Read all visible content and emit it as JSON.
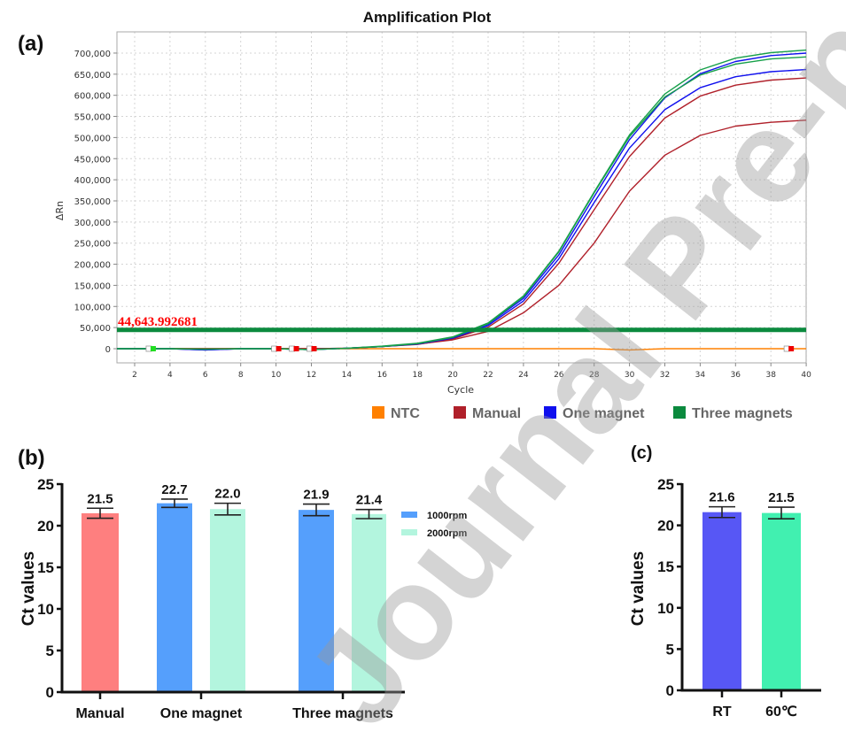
{
  "watermark": "Journal Pre-proof",
  "chart_data": [
    {
      "panel": "(a)",
      "type": "line",
      "title": "Amplification Plot",
      "xlabel": "Cycle",
      "ylabel": "ΔRn",
      "xlim": [
        1,
        40
      ],
      "ylim": [
        -35000,
        735000
      ],
      "xticks": [
        2,
        4,
        6,
        8,
        10,
        12,
        14,
        16,
        18,
        20,
        22,
        24,
        26,
        28,
        30,
        32,
        34,
        36,
        38,
        40
      ],
      "yticks": [
        0,
        50000,
        100000,
        150000,
        200000,
        250000,
        300000,
        350000,
        400000,
        450000,
        500000,
        550000,
        600000,
        650000,
        700000
      ],
      "ytick_labels": [
        "0",
        "50,000",
        "100,000",
        "150,000",
        "200,000",
        "250,000",
        "300,000",
        "350,000",
        "400,000",
        "450,000",
        "500,000",
        "550,000",
        "600,000",
        "650,000",
        "700,000"
      ],
      "grid": true,
      "threshold": {
        "value": 44643.992681,
        "label": "44,643.992681",
        "color": "#0b8a3e"
      },
      "x": [
        1,
        2,
        4,
        6,
        8,
        10,
        12,
        14,
        16,
        18,
        20,
        22,
        24,
        26,
        28,
        30,
        32,
        34,
        36,
        38,
        40
      ],
      "series": [
        {
          "name": "Three magnets",
          "color": "#17a04a",
          "values": [
            0,
            0,
            0,
            -1000,
            0,
            0,
            -2000,
            1000,
            6000,
            13000,
            28000,
            61000,
            125000,
            231000,
            371000,
            506000,
            603000,
            660000,
            688000,
            701000,
            707000
          ]
        },
        {
          "name": "Three magnets",
          "color": "#17a04a",
          "values": [
            0,
            0,
            0,
            -1000,
            0,
            0,
            -2000,
            1000,
            5000,
            12000,
            27000,
            59000,
            123000,
            229000,
            369000,
            502000,
            596000,
            648000,
            674000,
            686000,
            691000
          ]
        },
        {
          "name": "One magnet",
          "color": "#1010ee",
          "values": [
            0,
            0,
            0,
            -3000,
            0,
            0,
            -2000,
            1000,
            5000,
            12000,
            27000,
            58000,
            119000,
            222000,
            360000,
            495000,
            594000,
            651000,
            680000,
            694000,
            700000
          ]
        },
        {
          "name": "One magnet",
          "color": "#1010ee",
          "values": [
            0,
            0,
            0,
            -3000,
            0,
            0,
            -2000,
            1000,
            5000,
            11000,
            25000,
            55000,
            113000,
            213000,
            346000,
            475000,
            566000,
            618000,
            644000,
            656000,
            661000
          ]
        },
        {
          "name": "Manual",
          "color": "#b0202a",
          "values": [
            0,
            0,
            0,
            0,
            0,
            0,
            0,
            1000,
            5000,
            10000,
            23000,
            51000,
            106000,
            202000,
            329000,
            455000,
            546000,
            598000,
            624000,
            636000,
            641000
          ]
        },
        {
          "name": "Manual",
          "color": "#b0202a",
          "values": [
            0,
            0,
            0,
            0,
            0,
            0,
            0,
            1000,
            5000,
            11000,
            21000,
            41000,
            85000,
            150000,
            250000,
            373000,
            458000,
            505000,
            527000,
            536000,
            541000
          ]
        },
        {
          "name": "NTC",
          "color": "#ff8000",
          "values": [
            0,
            0,
            0,
            0,
            0,
            0,
            0,
            0,
            0,
            0,
            0,
            0,
            0,
            0,
            0,
            -3000,
            0,
            0,
            0,
            0,
            0
          ]
        }
      ],
      "markers": [
        {
          "cycle": 3,
          "color": "#22dd22"
        },
        {
          "cycle": 10.1,
          "color": "#ee0000"
        },
        {
          "cycle": 11.1,
          "color": "#ee0000"
        },
        {
          "cycle": 12.1,
          "color": "#ee0000"
        },
        {
          "cycle": 39.1,
          "color": "#ee0000"
        }
      ],
      "legend": [
        {
          "label": "NTC",
          "color": "#ff8000"
        },
        {
          "label": "Manual",
          "color": "#b0202a"
        },
        {
          "label": "One magnet",
          "color": "#1010ee"
        },
        {
          "label": "Three magnets",
          "color": "#0b8a3e"
        }
      ],
      "legend_position": "bottom-right"
    },
    {
      "panel": "(b)",
      "type": "bar",
      "ylabel": "Ct values",
      "ylim": [
        0,
        25
      ],
      "yticks": [
        0,
        5,
        10,
        15,
        20,
        25
      ],
      "categories": [
        "Manual",
        "One magnet",
        "Three magnets"
      ],
      "bars": [
        {
          "category": "Manual",
          "series": "Manual",
          "value": 21.5,
          "error": 0.6,
          "label": "21.5",
          "color": "#fe7f7f"
        },
        {
          "category": "One magnet",
          "series": "1000rpm",
          "value": 22.7,
          "error": 0.5,
          "label": "22.7",
          "color": "#559ffc"
        },
        {
          "category": "One magnet",
          "series": "2000rpm",
          "value": 22.0,
          "error": 0.7,
          "label": "22.0",
          "color": "#b3f5de"
        },
        {
          "category": "Three magnets",
          "series": "1000rpm",
          "value": 21.9,
          "error": 0.7,
          "label": "21.9",
          "color": "#559ffc"
        },
        {
          "category": "Three magnets",
          "series": "2000rpm",
          "value": 21.4,
          "error": 0.55,
          "label": "21.4",
          "color": "#b3f5de"
        }
      ],
      "legend": [
        {
          "label": "1000rpm",
          "color": "#559ffc"
        },
        {
          "label": "2000rpm",
          "color": "#b3f5de"
        }
      ],
      "legend_position": "right"
    },
    {
      "panel": "(c)",
      "type": "bar",
      "ylabel": "Ct values",
      "ylim": [
        0,
        25
      ],
      "yticks": [
        0,
        5,
        10,
        15,
        20,
        25
      ],
      "categories": [
        "RT",
        "60℃"
      ],
      "bars": [
        {
          "category": "RT",
          "value": 21.6,
          "error": 0.65,
          "label": "21.6",
          "color": "#5757f5"
        },
        {
          "category": "60℃",
          "value": 21.5,
          "error": 0.7,
          "label": "21.5",
          "color": "#41f0b0"
        }
      ]
    }
  ]
}
